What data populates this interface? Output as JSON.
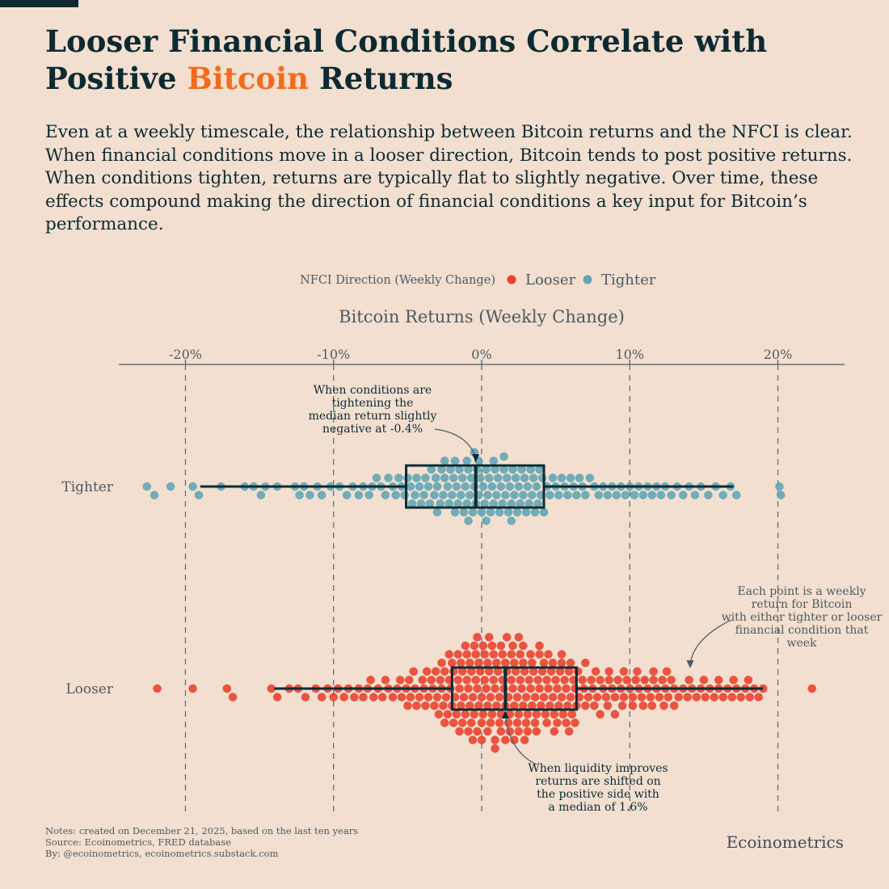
{
  "title": {
    "line1": "Looser Financial Conditions Correlate with",
    "line2_prefix": "Positive ",
    "line2_accent": "Bitcoin",
    "line2_suffix": " Returns"
  },
  "subtitle": "Even at a weekly timescale, the relationship between Bitcoin returns and the NFCI is clear. When financial conditions move in a looser direction, Bitcoin tends to post positive returns. When conditions tighten, returns are typically flat to slightly negative. Over time, these effects compound making the direction of financial conditions a key input for Bitcoin’s performance.",
  "notes": [
    "Notes: created on December 21, 2025, based on the last ten years",
    "Source: Ecoinometrics, FRED database",
    "By: @ecoinometrics, ecoinometrics.substack.com"
  ],
  "brand": "Ecoinometrics",
  "colors": {
    "looser": "#e8412c",
    "tighter": "#5fa5b5",
    "accent": "#f26b1d",
    "dark": "#0d2a33"
  },
  "chart_data": {
    "type": "beeswarm-boxplot",
    "legend_title": "NFCI Direction (Weekly Change)",
    "xlabel": "Bitcoin Returns (Weekly Change)",
    "xlim": [
      -24.5,
      24.5
    ],
    "xticks": [
      -20,
      -10,
      0,
      10,
      20
    ],
    "tick_labels": [
      "-20%",
      "-10%",
      "0%",
      "10%",
      "20%"
    ],
    "grid": "vertical dashed",
    "series": [
      {
        "name": "Tighter",
        "color": "#5fa5b5",
        "count": 170,
        "box": {
          "whisker_low": -19,
          "q1": -5.1,
          "median": -0.4,
          "q3": 4.2,
          "whisker_high": 17,
          "outliers": [
            -22.6,
            -22.1,
            -21.0,
            20.1,
            20.2
          ]
        },
        "points": [
          -22.6,
          -22.1,
          -21.0,
          -19.5,
          -19.1,
          -17.6,
          -16.0,
          -15.4,
          -14.9,
          -14.6,
          -13.8,
          -12.6,
          -12.3,
          -12.0,
          -11.6,
          -11.1,
          -10.8,
          -10.2,
          -9.6,
          -9.1,
          -8.7,
          -8.3,
          -8.0,
          -7.6,
          -7.4,
          -7.1,
          -6.8,
          -6.5,
          -6.3,
          -6.0,
          -5.8,
          -5.6,
          -5.4,
          -5.2,
          -5.0,
          -4.8,
          -4.7,
          -4.5,
          -4.4,
          -4.2,
          -4.1,
          -3.9,
          -3.8,
          -3.6,
          -3.5,
          -3.4,
          -3.2,
          -3.1,
          -3.0,
          -2.8,
          -2.7,
          -2.6,
          -2.5,
          -2.3,
          -2.2,
          -2.1,
          -2.0,
          -1.9,
          -1.8,
          -1.7,
          -1.6,
          -1.5,
          -1.4,
          -1.3,
          -1.2,
          -1.1,
          -1.0,
          -0.9,
          -0.8,
          -0.7,
          -0.6,
          -0.5,
          -0.4,
          -0.3,
          -0.2,
          -0.1,
          0.0,
          0.1,
          0.2,
          0.3,
          0.4,
          0.5,
          0.6,
          0.7,
          0.8,
          0.9,
          1.0,
          1.1,
          1.2,
          1.3,
          1.4,
          1.5,
          1.6,
          1.7,
          1.8,
          1.9,
          2.0,
          2.1,
          2.2,
          2.3,
          2.4,
          2.5,
          2.6,
          2.7,
          2.8,
          2.9,
          3.0,
          3.1,
          3.2,
          3.3,
          3.4,
          3.5,
          3.6,
          3.7,
          3.8,
          3.9,
          4.0,
          4.1,
          4.2,
          4.4,
          4.6,
          4.8,
          5.0,
          5.2,
          5.4,
          5.6,
          5.8,
          6.0,
          6.2,
          6.4,
          6.6,
          6.8,
          7.0,
          7.3,
          7.6,
          7.9,
          8.2,
          8.5,
          8.8,
          9.1,
          9.4,
          9.7,
          10.0,
          10.3,
          10.6,
          10.9,
          11.2,
          11.5,
          11.8,
          12.1,
          12.4,
          12.8,
          13.2,
          13.6,
          14.0,
          14.4,
          14.8,
          15.3,
          15.8,
          16.3,
          16.8,
          17.2,
          20.1,
          20.2,
          -1.0,
          -0.5,
          0.3,
          -2.5,
          -0.2,
          1.5,
          -3.0,
          0.8,
          2.0,
          -1.8,
          -0.9
        ]
      },
      {
        "name": "Looser",
        "color": "#e8412c",
        "count": 300,
        "box": {
          "whisker_low": -14,
          "q1": -2,
          "median": 1.6,
          "q3": 6.4,
          "whisker_high": 19,
          "outliers": [
            -21.9,
            -19.5,
            -17.2,
            -16.8,
            22.3
          ]
        },
        "points": [
          -21.9,
          -19.5,
          -17.2,
          -16.8,
          -14.2,
          -13.8,
          -13.0,
          -12.4,
          -11.9,
          -11.2,
          -10.8,
          -10.4,
          -10.0,
          -9.7,
          -9.3,
          -9.0,
          -8.6,
          -8.3,
          -8.0,
          -7.7,
          -7.3,
          -7.0,
          -6.7,
          -6.3,
          -6.0,
          -5.7,
          -5.4,
          -5.1,
          -4.9,
          -4.6,
          -4.4,
          -4.2,
          -4.0,
          -3.8,
          -3.6,
          -3.4,
          -3.2,
          -3.0,
          -2.9,
          -2.8,
          -2.7,
          -2.6,
          -2.5,
          -2.4,
          -2.3,
          -2.2,
          -2.1,
          -2.0,
          -1.9,
          -1.8,
          -1.7,
          -1.6,
          -1.5,
          -1.4,
          -1.3,
          -1.2,
          -1.1,
          -1.0,
          -0.9,
          -0.8,
          -0.7,
          -0.6,
          -0.5,
          -0.4,
          -0.3,
          -0.2,
          -0.1,
          0.0,
          0.1,
          0.2,
          0.3,
          0.4,
          0.5,
          0.6,
          0.7,
          0.8,
          0.9,
          1.0,
          1.1,
          1.2,
          1.3,
          1.4,
          1.5,
          1.6,
          1.7,
          1.8,
          1.9,
          2.0,
          2.1,
          2.2,
          2.3,
          2.4,
          2.5,
          2.6,
          2.7,
          2.8,
          2.9,
          3.0,
          3.1,
          3.2,
          3.3,
          3.4,
          3.5,
          3.6,
          3.7,
          3.8,
          3.9,
          4.0,
          4.1,
          4.2,
          4.3,
          4.4,
          4.5,
          4.6,
          4.7,
          4.8,
          4.9,
          5.0,
          5.1,
          5.2,
          5.3,
          5.4,
          5.5,
          5.6,
          5.7,
          5.8,
          5.9,
          6.0,
          6.1,
          6.2,
          6.3,
          6.4,
          6.6,
          6.8,
          7.0,
          7.2,
          7.4,
          7.6,
          7.8,
          8.0,
          8.2,
          8.4,
          8.6,
          8.8,
          9.0,
          9.2,
          9.4,
          9.6,
          9.8,
          10.0,
          10.2,
          10.4,
          10.6,
          10.8,
          11.0,
          11.2,
          11.4,
          11.6,
          11.8,
          12.0,
          12.2,
          12.4,
          12.6,
          12.8,
          13.0,
          13.3,
          13.6,
          13.9,
          14.2,
          14.5,
          14.8,
          15.1,
          15.4,
          15.7,
          16.0,
          16.3,
          16.6,
          16.9,
          17.2,
          17.5,
          17.8,
          18.1,
          18.4,
          18.7,
          19.0,
          22.3,
          -5.5,
          -4.8,
          -3.9,
          -3.3,
          -2.7,
          -2.2,
          -1.9,
          -1.6,
          -1.3,
          -1.0,
          -0.8,
          -0.6,
          -0.4,
          -0.2,
          0.0,
          0.2,
          0.4,
          0.6,
          0.8,
          1.0,
          1.2,
          1.4,
          1.6,
          1.8,
          2.0,
          2.2,
          2.4,
          2.6,
          2.8,
          3.0,
          3.3,
          3.6,
          3.9,
          4.2,
          4.5,
          4.8,
          5.1,
          5.4,
          5.7,
          6.0,
          6.5,
          7.0,
          7.5,
          8.0,
          8.5,
          9.0,
          9.6,
          10.2,
          10.9,
          11.6,
          12.3,
          13.0,
          14.0,
          15.0,
          16.0,
          17.0,
          18.0,
          -7.5,
          -6.5,
          -5.0,
          -4.5,
          -3.7,
          -3.1,
          -2.5,
          -2.0,
          -1.5,
          -1.1,
          -0.7,
          -0.3,
          0.1,
          0.5,
          0.9,
          1.3,
          1.7,
          2.1,
          2.5,
          2.9,
          3.4,
          3.9,
          4.4,
          4.9,
          5.4,
          5.9,
          6.3,
          6.9,
          7.7,
          8.6,
          9.5,
          10.5,
          11.5,
          12.5,
          -0.9,
          0.0,
          0.9,
          1.9,
          2.8,
          3.7,
          -1.4,
          -0.5,
          0.4,
          1.3,
          2.2,
          3.1,
          -0.3,
          0.7,
          1.6,
          2.5
        ]
      }
    ],
    "annotations": [
      {
        "series": "Tighter",
        "text": [
          "When conditions are",
          "tightening the",
          "median return slightly",
          "negative at -0.4%"
        ]
      },
      {
        "series": "Looser",
        "text": [
          "When liquidity improves",
          "returns are shifted on",
          "the positive side with",
          "a median of 1.6%"
        ]
      },
      {
        "series": "Looser",
        "text": [
          "Each point is a weekly",
          "return for Bitcoin",
          "with either tighter or looser",
          "financial condition that",
          "week"
        ]
      }
    ]
  }
}
